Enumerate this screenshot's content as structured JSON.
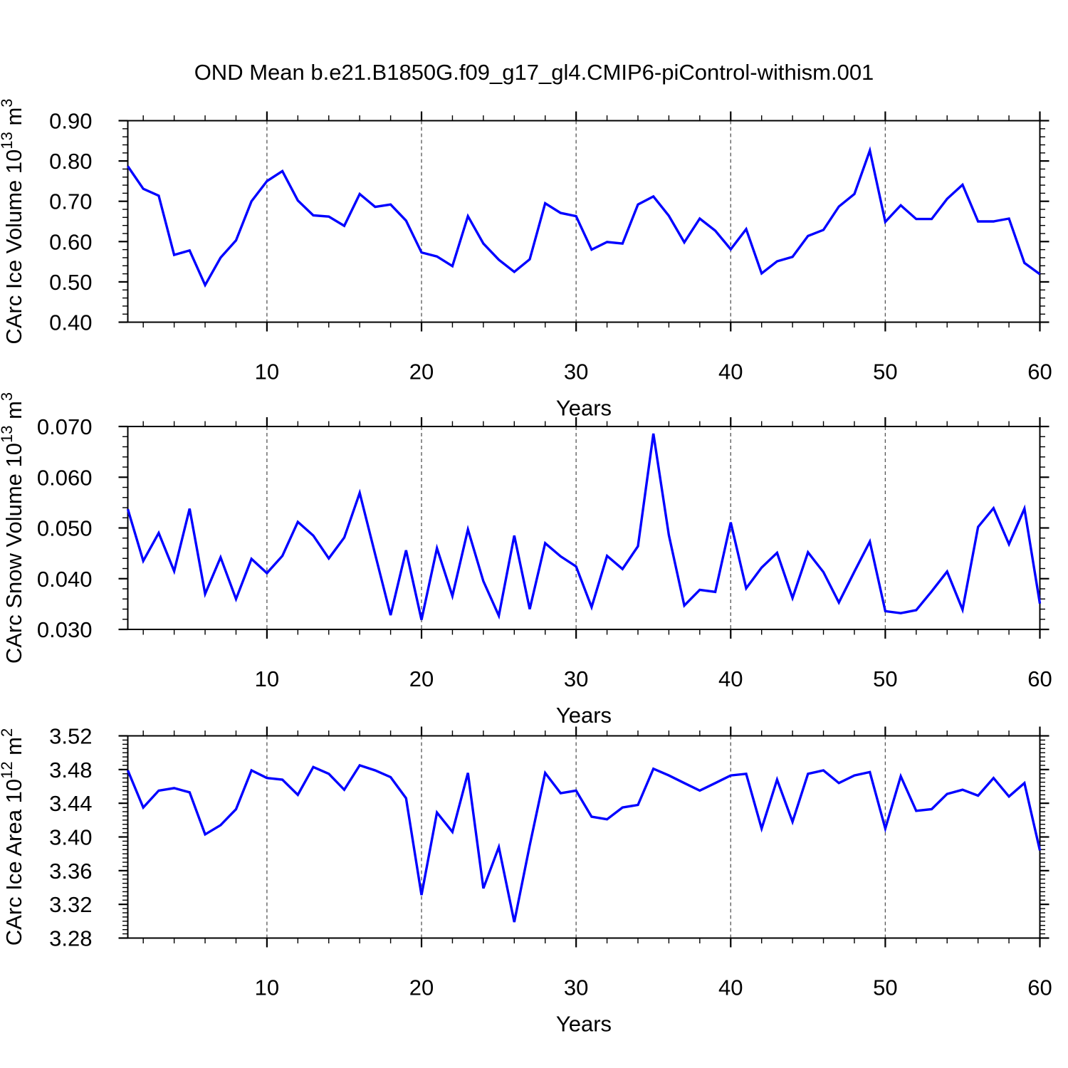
{
  "title": "OND Mean b.e21.B1850G.f09_g17_gl4.CMIP6-piControl-withism.001",
  "line_color": "#0000ff",
  "grid_color": "#555555",
  "axis_color": "#000000",
  "x_axis": {
    "label": "Years",
    "xlim": [
      1,
      60
    ],
    "major_ticks": [
      10,
      20,
      30,
      40,
      50,
      60
    ],
    "major_tick_labels": [
      "10",
      "20",
      "30",
      "40",
      "50",
      "60"
    ],
    "minor_step": 2,
    "gridlines": [
      10,
      20,
      30,
      40,
      50
    ]
  },
  "chart_data": [
    {
      "type": "line",
      "ylabel_text": "CArc Ice Volume 10^13 m^3",
      "ylabel_parts": [
        {
          "text": "CArc Ice Volume 10"
        },
        {
          "text": "13",
          "sup": true
        },
        {
          "text": " m"
        },
        {
          "text": "3",
          "sup": true
        }
      ],
      "ylim": [
        0.4,
        0.9
      ],
      "ytick_labels": [
        "0.40",
        "0.50",
        "0.60",
        "0.70",
        "0.80",
        "0.90"
      ],
      "major_step": 0.1,
      "minor_step": 0.02,
      "x_start_year": 1,
      "values": [
        0.787,
        0.731,
        0.714,
        0.567,
        0.578,
        0.492,
        0.56,
        0.603,
        0.7,
        0.75,
        0.775,
        0.702,
        0.665,
        0.662,
        0.639,
        0.718,
        0.686,
        0.692,
        0.652,
        0.573,
        0.563,
        0.539,
        0.663,
        0.595,
        0.555,
        0.525,
        0.556,
        0.695,
        0.671,
        0.663,
        0.58,
        0.599,
        0.595,
        0.692,
        0.712,
        0.664,
        0.598,
        0.657,
        0.627,
        0.581,
        0.631,
        0.521,
        0.551,
        0.562,
        0.614,
        0.629,
        0.687,
        0.718,
        0.826,
        0.649,
        0.69,
        0.656,
        0.656,
        0.706,
        0.741,
        0.65,
        0.65,
        0.657,
        0.547,
        0.519
      ]
    },
    {
      "type": "line",
      "ylabel_text": "CArc Snow Volume 10^13 m^3",
      "ylabel_parts": [
        {
          "text": "CArc Snow Volume 10"
        },
        {
          "text": "13",
          "sup": true
        },
        {
          "text": " m"
        },
        {
          "text": "3",
          "sup": true
        }
      ],
      "ylim": [
        0.03,
        0.07
      ],
      "ytick_labels": [
        "0.030",
        "0.040",
        "0.050",
        "0.060",
        "0.070"
      ],
      "major_step": 0.01,
      "minor_step": 0.002,
      "x_start_year": 1,
      "values": [
        0.0537,
        0.0435,
        0.049,
        0.0415,
        0.0538,
        0.037,
        0.0442,
        0.036,
        0.0439,
        0.0411,
        0.0445,
        0.0512,
        0.0485,
        0.044,
        0.0481,
        0.0569,
        0.0448,
        0.0328,
        0.0456,
        0.0319,
        0.046,
        0.0366,
        0.0497,
        0.0395,
        0.0327,
        0.0485,
        0.034,
        0.047,
        0.0444,
        0.0424,
        0.0344,
        0.0445,
        0.0419,
        0.0464,
        0.0686,
        0.0486,
        0.0347,
        0.0378,
        0.0374,
        0.0511,
        0.0381,
        0.0422,
        0.0451,
        0.0362,
        0.0452,
        0.0413,
        0.0353,
        0.0414,
        0.0473,
        0.0336,
        0.0332,
        0.0338,
        0.0375,
        0.0414,
        0.0339,
        0.0502,
        0.0539,
        0.0468,
        0.0538,
        0.0351
      ]
    },
    {
      "type": "line",
      "ylabel_text": "CArc Ice Area 10^12 m^2",
      "ylabel_parts": [
        {
          "text": "CArc Ice Area 10"
        },
        {
          "text": "12",
          "sup": true
        },
        {
          "text": " m"
        },
        {
          "text": "2",
          "sup": true
        }
      ],
      "ylim": [
        3.28,
        3.52
      ],
      "ytick_labels": [
        "3.28",
        "3.32",
        "3.36",
        "3.40",
        "3.44",
        "3.48",
        "3.52"
      ],
      "major_step": 0.04,
      "minor_step": 0.005,
      "x_start_year": 1,
      "values": [
        3.479,
        3.435,
        3.455,
        3.458,
        3.453,
        3.403,
        3.414,
        3.433,
        3.479,
        3.47,
        3.468,
        3.45,
        3.483,
        3.475,
        3.456,
        3.485,
        3.479,
        3.471,
        3.446,
        3.331,
        3.429,
        3.406,
        3.476,
        3.339,
        3.388,
        3.299,
        3.39,
        3.476,
        3.452,
        3.455,
        3.424,
        3.421,
        3.435,
        3.438,
        3.481,
        3.473,
        3.464,
        3.455,
        3.464,
        3.473,
        3.475,
        3.41,
        3.468,
        3.418,
        3.475,
        3.479,
        3.464,
        3.473,
        3.477,
        3.41,
        3.472,
        3.431,
        3.433,
        3.451,
        3.456,
        3.449,
        3.47,
        3.448,
        3.464,
        3.384
      ]
    }
  ]
}
